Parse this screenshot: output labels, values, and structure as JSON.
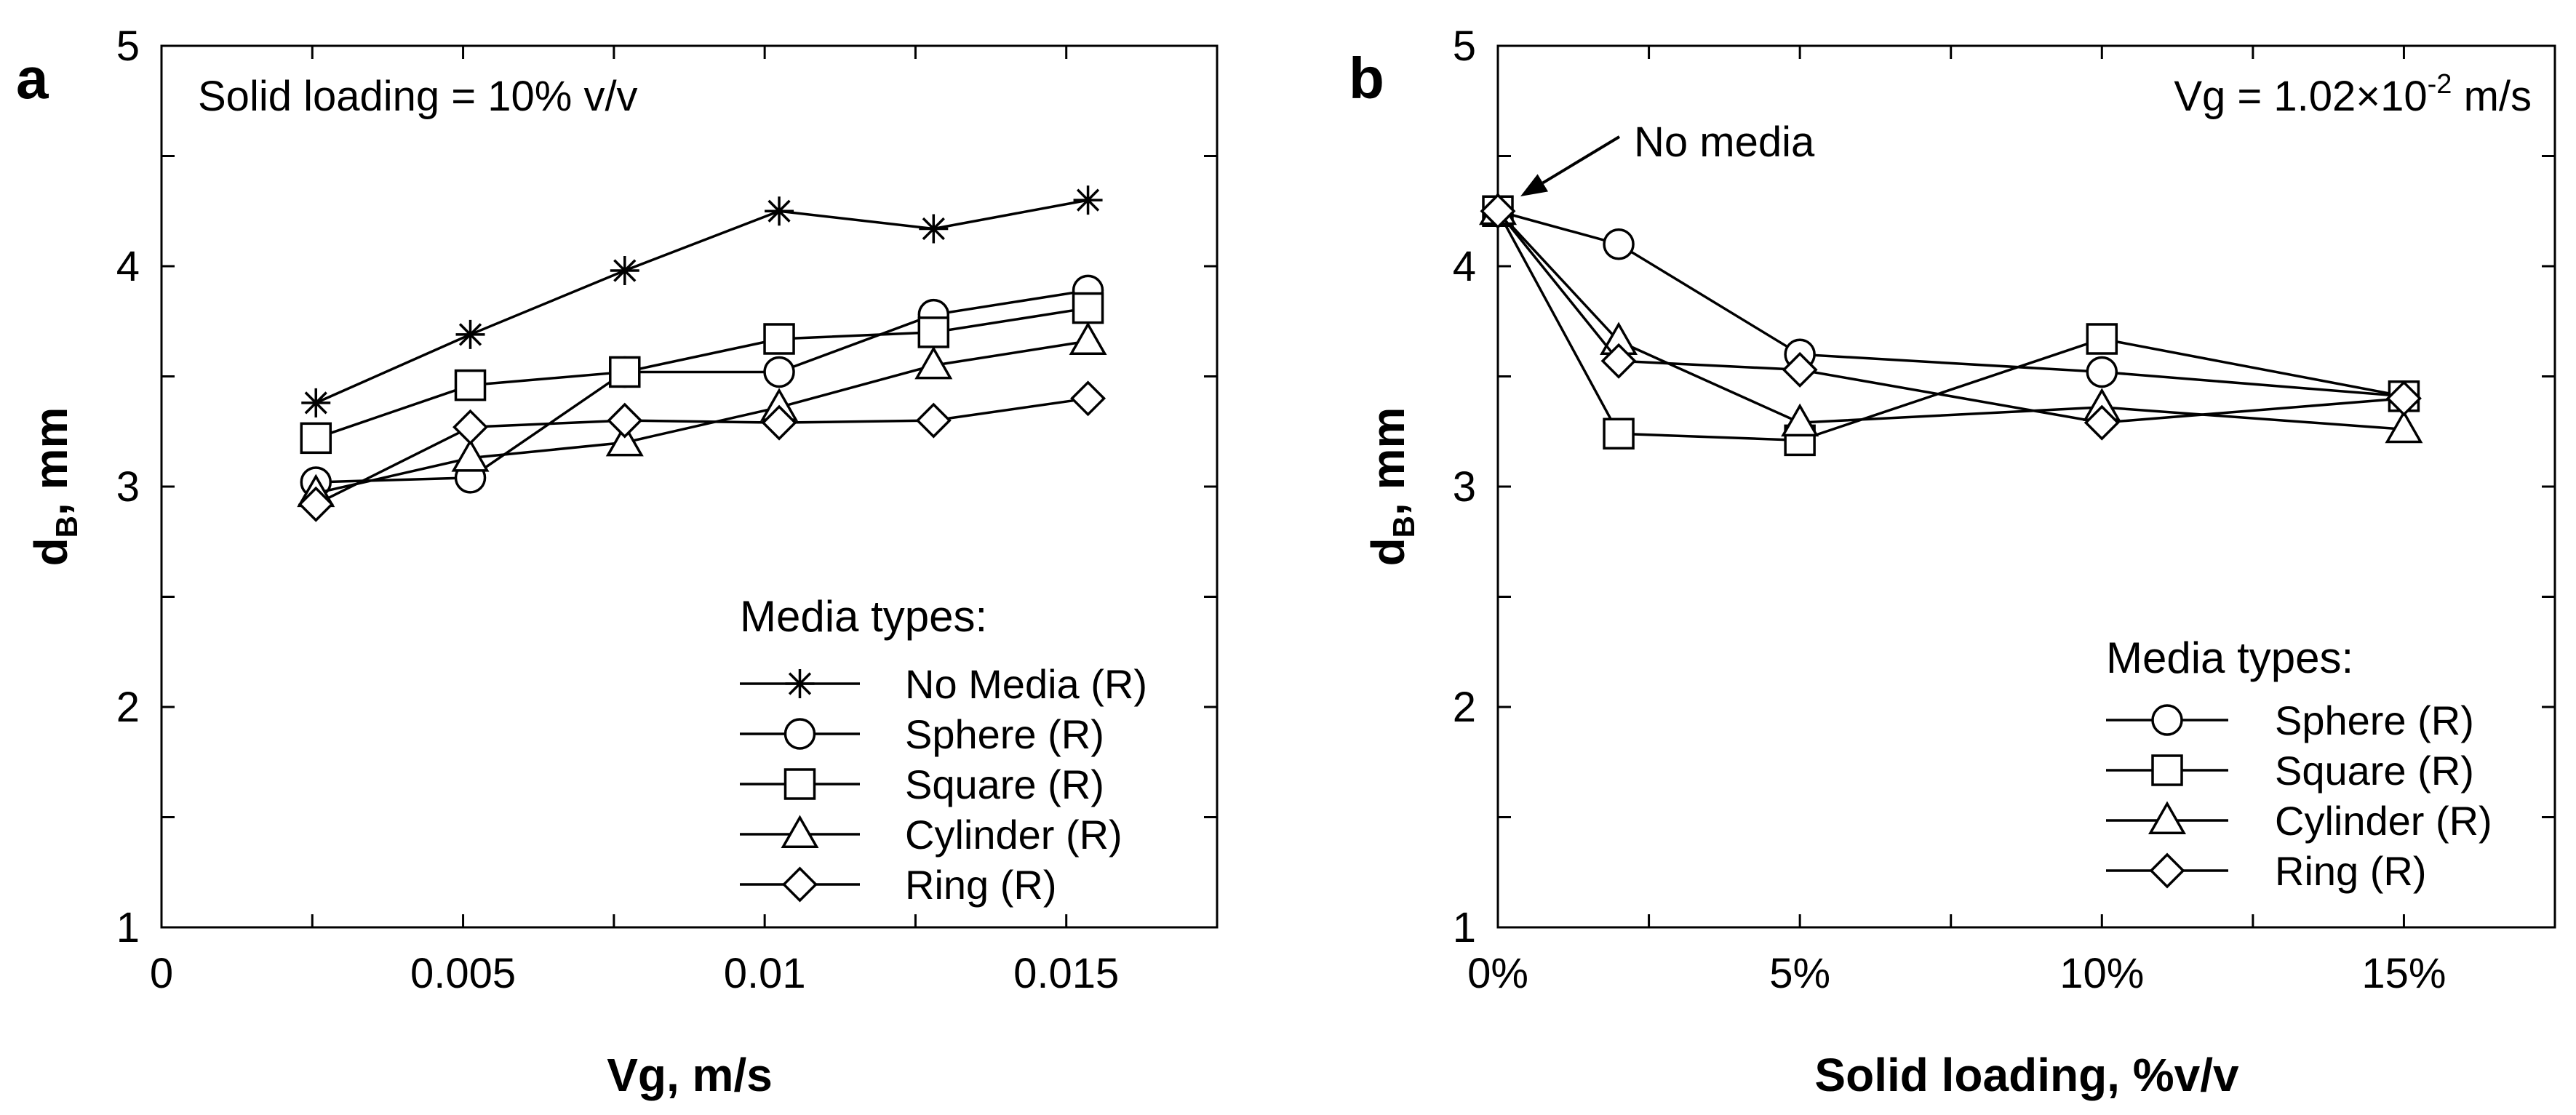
{
  "chart_data": [
    {
      "panel": "a",
      "type": "line",
      "annotation": "Solid loading = 10% v/v",
      "xlabel": "Vg, m/s",
      "ylabel_main": "d",
      "ylabel_sub": "B",
      "ylabel_tail": ", mm",
      "xlim": [
        0,
        0.0175
      ],
      "ylim": [
        1,
        5
      ],
      "xticks": [
        0,
        0.0025,
        0.005,
        0.0075,
        0.01,
        0.0125,
        0.015,
        0.0175
      ],
      "xtick_labels": [
        {
          "value": 0,
          "label": "0"
        },
        {
          "value": 0.005,
          "label": "0.005"
        },
        {
          "value": 0.01,
          "label": "0.01"
        },
        {
          "value": 0.015,
          "label": "0.015"
        }
      ],
      "yticks": [
        1,
        1.5,
        2,
        2.5,
        3,
        3.5,
        4,
        4.5,
        5
      ],
      "ytick_labels": [
        {
          "value": 1,
          "label": "1"
        },
        {
          "value": 2,
          "label": "2"
        },
        {
          "value": 3,
          "label": "3"
        },
        {
          "value": 4,
          "label": "4"
        },
        {
          "value": 5,
          "label": "5"
        }
      ],
      "legend_title": "Media types:",
      "legend_position": "lower-right",
      "series": [
        {
          "name": "No Media (R)",
          "marker": "star",
          "x": [
            0.00256,
            0.00512,
            0.00768,
            0.01024,
            0.0128,
            0.01536
          ],
          "y": [
            3.38,
            3.69,
            3.98,
            4.25,
            4.17,
            4.3
          ]
        },
        {
          "name": "Sphere (R)",
          "marker": "circle",
          "x": [
            0.00256,
            0.00512,
            0.00768,
            0.01024,
            0.0128,
            0.01536
          ],
          "y": [
            3.02,
            3.04,
            3.52,
            3.52,
            3.78,
            3.89
          ]
        },
        {
          "name": "Square (R)",
          "marker": "square",
          "x": [
            0.00256,
            0.00512,
            0.00768,
            0.01024,
            0.0128,
            0.01536
          ],
          "y": [
            3.22,
            3.46,
            3.52,
            3.67,
            3.7,
            3.81
          ]
        },
        {
          "name": "Cylinder (R)",
          "marker": "triangle",
          "x": [
            0.00256,
            0.00512,
            0.00768,
            0.01024,
            0.0128,
            0.01536
          ],
          "y": [
            2.97,
            3.13,
            3.2,
            3.36,
            3.55,
            3.66
          ]
        },
        {
          "name": "Ring (R)",
          "marker": "diamond",
          "x": [
            0.00256,
            0.00512,
            0.00768,
            0.01024,
            0.0128,
            0.01536
          ],
          "y": [
            2.92,
            3.27,
            3.3,
            3.29,
            3.3,
            3.4
          ]
        }
      ]
    },
    {
      "panel": "b",
      "type": "line",
      "annotation_main": "Vg = 1.02×10",
      "annotation_sup": "-2",
      "annotation_tail": " m/s",
      "callout": "No media",
      "xlabel": "Solid loading, %v/v",
      "ylabel_main": "d",
      "ylabel_sub": "B",
      "ylabel_tail": ", mm",
      "xlim": [
        0,
        17.5
      ],
      "ylim": [
        1,
        5
      ],
      "xticks": [
        0,
        2.5,
        5,
        7.5,
        10,
        12.5,
        15,
        17.5
      ],
      "xtick_labels": [
        {
          "value": 0,
          "label": "0%"
        },
        {
          "value": 5,
          "label": "5%"
        },
        {
          "value": 10,
          "label": "10%"
        },
        {
          "value": 15,
          "label": "15%"
        }
      ],
      "yticks": [
        1,
        1.5,
        2,
        2.5,
        3,
        3.5,
        4,
        4.5,
        5
      ],
      "ytick_labels": [
        {
          "value": 1,
          "label": "1"
        },
        {
          "value": 2,
          "label": "2"
        },
        {
          "value": 3,
          "label": "3"
        },
        {
          "value": 4,
          "label": "4"
        },
        {
          "value": 5,
          "label": "5"
        }
      ],
      "legend_title": "Media types:",
      "legend_position": "lower-right",
      "series": [
        {
          "name": "Sphere (R)",
          "marker": "circle",
          "x": [
            0,
            2,
            5,
            10,
            15
          ],
          "y": [
            4.25,
            4.1,
            3.6,
            3.52,
            3.41
          ]
        },
        {
          "name": "Square (R)",
          "marker": "square",
          "x": [
            0,
            2,
            5,
            10,
            15
          ],
          "y": [
            4.25,
            3.24,
            3.21,
            3.67,
            3.41
          ]
        },
        {
          "name": "Cylinder (R)",
          "marker": "triangle",
          "x": [
            0,
            2,
            5,
            10,
            15
          ],
          "y": [
            4.25,
            3.66,
            3.29,
            3.36,
            3.26
          ]
        },
        {
          "name": "Ring (R)",
          "marker": "diamond",
          "x": [
            0,
            2,
            5,
            10,
            15
          ],
          "y": [
            4.25,
            3.57,
            3.53,
            3.29,
            3.4
          ]
        }
      ]
    }
  ]
}
